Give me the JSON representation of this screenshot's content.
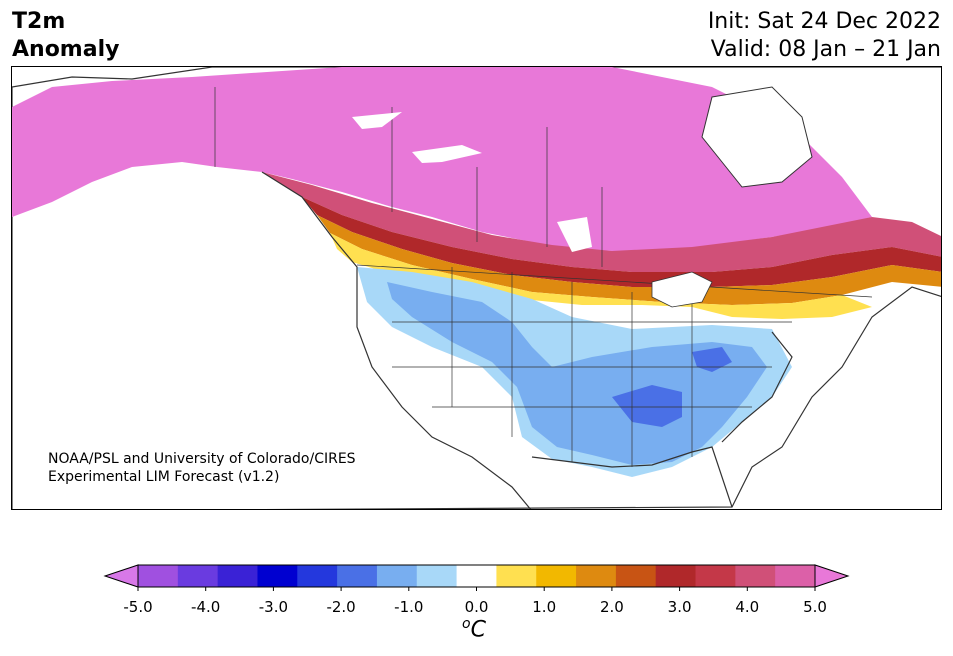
{
  "title": {
    "variable": "T2m",
    "subtitle": "Anomaly",
    "init": "Init: Sat 24 Dec 2022",
    "valid": "Valid: 08 Jan – 21 Jan"
  },
  "credit": {
    "line1": "NOAA/PSL and University of Colorado/CIRES",
    "line2": "Experimental LIM Forecast (v1.2)"
  },
  "colorbar": {
    "ticks": [
      "-5.0",
      "-4.0",
      "-3.0",
      "-2.0",
      "-1.0",
      "0.0",
      "1.0",
      "2.0",
      "3.0",
      "4.0",
      "5.0"
    ],
    "unit_sup": "o",
    "unit": "C",
    "colors": [
      "#d878e8",
      "#a050e0",
      "#6a3be0",
      "#3a22d6",
      "#0000d0",
      "#2438dd",
      "#4a70e6",
      "#78aef0",
      "#a8d8f8",
      "#ffffff",
      "#ffe050",
      "#f2b800",
      "#de8a10",
      "#c85414",
      "#b0282a",
      "#c43848",
      "#d05078",
      "#dc60a8",
      "#e878d8"
    ]
  },
  "map": {
    "region": "North America",
    "colors": {
      "strong_warm": "#e878d8",
      "warm4": "#d05078",
      "warm3": "#b0282a",
      "warm2": "#de8a10",
      "warm1": "#ffe050",
      "cool1": "#a8d8f8",
      "cool2": "#78aef0",
      "cool3": "#4a70e6",
      "border": "#333333"
    }
  }
}
